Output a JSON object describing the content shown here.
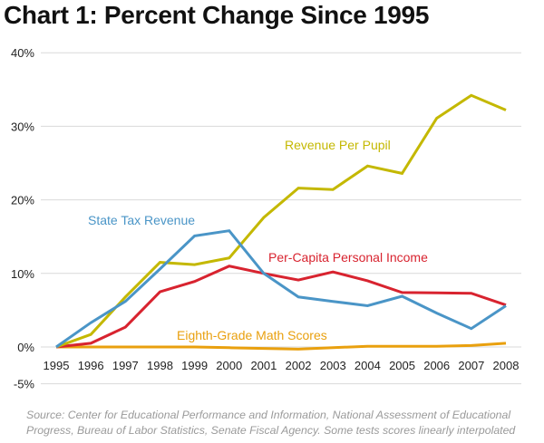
{
  "chart_data": {
    "type": "line",
    "title": "Chart 1: Percent Change Since 1995",
    "xlabel": "",
    "ylabel": "",
    "x": [
      "1995",
      "1996",
      "1997",
      "1998",
      "1999",
      "2000",
      "2001",
      "2002",
      "2003",
      "2004",
      "2005",
      "2006",
      "2007",
      "2008"
    ],
    "ylim": [
      -5,
      40
    ],
    "yticks": [
      -5,
      0,
      10,
      20,
      30,
      40
    ],
    "ytick_labels": [
      "-5%",
      "0%",
      "10%",
      "20%",
      "30%",
      "40%"
    ],
    "grid": true,
    "series": [
      {
        "name": "Revenue Per Pupil",
        "color": "#c4b800",
        "values": [
          0,
          1.7,
          6.8,
          11.5,
          11.2,
          12.1,
          17.6,
          21.6,
          21.4,
          24.6,
          23.6,
          31.1,
          34.2,
          32.2
        ]
      },
      {
        "name": "State Tax Revenue",
        "color": "#4a95c7",
        "values": [
          0,
          3.3,
          6.2,
          10.6,
          15.1,
          15.8,
          10.0,
          6.8,
          6.2,
          5.6,
          6.9,
          4.6,
          2.5,
          5.6
        ]
      },
      {
        "name": "Per-Capita Personal Income",
        "color": "#d8232f",
        "values": [
          0,
          0.5,
          2.7,
          7.5,
          8.9,
          11.0,
          10.0,
          9.1,
          10.2,
          9.0,
          7.4,
          7.35,
          7.3,
          5.7
        ]
      },
      {
        "name": "Eighth-Grade Math Scores",
        "color": "#e9a00e",
        "values": [
          0,
          0,
          0,
          0,
          0,
          -0.1,
          -0.2,
          -0.3,
          -0.1,
          0.1,
          0.1,
          0.1,
          0.2,
          0.5
        ]
      }
    ],
    "annotations": [
      {
        "text": "Revenue Per Pupil",
        "series": 0
      },
      {
        "text": "State Tax Revenue",
        "series": 1
      },
      {
        "text": "Per-Capita Personal Income",
        "series": 2
      },
      {
        "text": "Eighth-Grade Math Scores",
        "series": 3
      }
    ],
    "source": "Source: Center for Educational Performance and Information, National Assessment of Educational Progress, Bureau of Labor Statistics, Senate Fiscal Agency. Some tests scores linearly interpolated"
  }
}
